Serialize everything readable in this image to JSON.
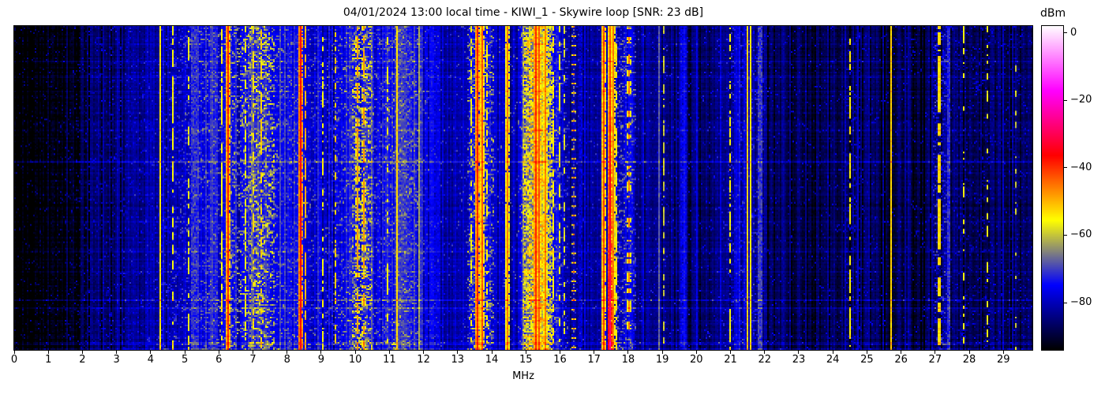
{
  "chart_data": {
    "type": "heatmap",
    "subtype": "radio-spectrogram-waterfall",
    "title": "04/01/2024 13:00 local time - KIWI_1 - Skywire loop [SNR: 23 dB]",
    "datetime_label": "04/01/2024 13:00 local time",
    "receiver": "KIWI_1",
    "antenna": "Skywire loop",
    "snr_label": "SNR: 23 dB",
    "x_axis": {
      "label": "MHz",
      "ticks": [
        0,
        1,
        2,
        3,
        4,
        5,
        6,
        7,
        8,
        9,
        10,
        11,
        12,
        13,
        14,
        15,
        16,
        17,
        18,
        19,
        20,
        21,
        22,
        23,
        24,
        25,
        26,
        27,
        28,
        29
      ]
    },
    "x_range": [
      0,
      29.85
    ],
    "y_axis": {
      "label": "",
      "ticks": [],
      "meaning": "time, no tick labels shown"
    },
    "colorbar": {
      "label": "dBm",
      "ticks": [
        {
          "value": 0,
          "label": "0"
        },
        {
          "value": -20,
          "label": "−20"
        },
        {
          "value": -40,
          "label": "−40"
        },
        {
          "value": -60,
          "label": "−60"
        },
        {
          "value": -80,
          "label": "−80"
        }
      ]
    },
    "colormap": {
      "vmin": -94,
      "vmax": 2,
      "stops": [
        [
          0.0,
          "#000000"
        ],
        [
          0.2,
          "#0000ff"
        ],
        [
          0.4,
          "#ffff00"
        ],
        [
          0.6,
          "#ff0000"
        ],
        [
          0.8,
          "#ff00ff"
        ],
        [
          1.0,
          "#ffffff"
        ]
      ]
    },
    "seed": 42,
    "noise_floor_profile": [
      [
        0,
        -96
      ],
      [
        0.7,
        -95
      ],
      [
        1.3,
        -93.5
      ],
      [
        1.8,
        -91.5
      ],
      [
        2.2,
        -89
      ],
      [
        2.6,
        -86.5
      ],
      [
        3.2,
        -85
      ],
      [
        4.0,
        -83.5
      ],
      [
        4.5,
        -82
      ],
      [
        4.9,
        -80
      ],
      [
        5.2,
        -78
      ],
      [
        5.6,
        -76.5
      ],
      [
        6.1,
        -76.5
      ],
      [
        6.5,
        -75
      ],
      [
        6.9,
        -73.5
      ],
      [
        7.3,
        -73
      ],
      [
        7.6,
        -74.5
      ],
      [
        8.0,
        -77
      ],
      [
        8.4,
        -76
      ],
      [
        8.8,
        -78
      ],
      [
        9.3,
        -78.5
      ],
      [
        9.7,
        -76
      ],
      [
        10.0,
        -73.5
      ],
      [
        10.35,
        -74
      ],
      [
        10.7,
        -77
      ],
      [
        11.0,
        -75
      ],
      [
        11.25,
        -72.5
      ],
      [
        11.6,
        -73.5
      ],
      [
        11.9,
        -76
      ],
      [
        12.2,
        -80
      ],
      [
        12.7,
        -82.5
      ],
      [
        13.1,
        -81
      ],
      [
        13.45,
        -76
      ],
      [
        13.8,
        -76
      ],
      [
        14.1,
        -79
      ],
      [
        14.7,
        -79.5
      ],
      [
        15.0,
        -69
      ],
      [
        15.2,
        -65
      ],
      [
        15.45,
        -65
      ],
      [
        15.7,
        -71
      ],
      [
        15.95,
        -78
      ],
      [
        16.3,
        -82
      ],
      [
        16.8,
        -83.5
      ],
      [
        17.2,
        -83
      ],
      [
        17.7,
        -79
      ],
      [
        18.0,
        -77.5
      ],
      [
        18.2,
        -81
      ],
      [
        18.6,
        -83.5
      ],
      [
        19.2,
        -85
      ],
      [
        20.0,
        -86
      ],
      [
        20.8,
        -84
      ],
      [
        21.2,
        -81.5
      ],
      [
        21.7,
        -81
      ],
      [
        22.1,
        -86.5
      ],
      [
        22.7,
        -88.5
      ],
      [
        23.5,
        -89
      ],
      [
        24.2,
        -88.5
      ],
      [
        24.6,
        -86
      ],
      [
        25.0,
        -87.5
      ],
      [
        25.6,
        -88.5
      ],
      [
        26.5,
        -89
      ],
      [
        27.05,
        -86
      ],
      [
        27.4,
        -87
      ],
      [
        27.9,
        -87
      ],
      [
        28.5,
        -87.5
      ],
      [
        29.3,
        -88
      ],
      [
        29.85,
        -89
      ]
    ],
    "speckle_bands": [
      [
        1.8,
        4.3,
        0.05,
        9
      ],
      [
        4.3,
        5.0,
        0.1,
        13
      ],
      [
        5.0,
        6.2,
        0.12,
        13
      ],
      [
        6.2,
        6.9,
        0.15,
        16
      ],
      [
        6.9,
        7.6,
        0.28,
        19
      ],
      [
        7.6,
        8.3,
        0.1,
        13
      ],
      [
        8.6,
        9.4,
        0.08,
        12
      ],
      [
        9.4,
        9.9,
        0.12,
        14
      ],
      [
        9.9,
        10.45,
        0.3,
        19
      ],
      [
        10.45,
        11.9,
        0.12,
        12
      ],
      [
        11.9,
        12.4,
        0.07,
        10
      ],
      [
        13.3,
        14.0,
        0.22,
        19
      ],
      [
        14.9,
        15.75,
        0.5,
        20
      ],
      [
        15.75,
        16.2,
        0.1,
        14
      ],
      [
        17.65,
        18.2,
        0.18,
        16
      ],
      [
        20.9,
        21.95,
        0.1,
        12
      ],
      [
        24.35,
        24.75,
        0.08,
        12
      ],
      [
        26.95,
        27.3,
        0.22,
        18
      ],
      [
        27.6,
        28.7,
        0.05,
        11
      ],
      [
        29.1,
        29.6,
        0.04,
        10
      ]
    ],
    "carriers": [
      [
        2.57,
        -82,
        1,
        "solid"
      ],
      [
        3.95,
        -83,
        1,
        "solid"
      ],
      [
        4.27,
        -54,
        1,
        "solid"
      ],
      [
        4.64,
        -56,
        1,
        "dashed",
        0.6
      ],
      [
        5.09,
        -57,
        1,
        "dashed",
        0.5
      ],
      [
        6.05,
        -55,
        1,
        "dashed",
        0.6
      ],
      [
        6.27,
        -40,
        1,
        "solid"
      ],
      [
        6.77,
        -56,
        1,
        "dashed",
        0.5
      ],
      [
        7.0,
        -53,
        1,
        "dashed",
        0.5
      ],
      [
        7.21,
        -52,
        1,
        "dashed",
        0.5
      ],
      [
        8.36,
        -37,
        1,
        "solid"
      ],
      [
        8.5,
        -50,
        1,
        "dashed",
        0.7
      ],
      [
        9.02,
        -56,
        1,
        "dashed",
        0.5
      ],
      [
        9.4,
        -52,
        1,
        "dashed",
        0.4
      ],
      [
        10.02,
        -48,
        1,
        "dashed",
        0.75
      ],
      [
        10.25,
        -48,
        1,
        "dashed",
        0.6
      ],
      [
        10.9,
        -56,
        1,
        "dashed",
        0.5
      ],
      [
        11.2,
        -53,
        1,
        "solid"
      ],
      [
        11.85,
        -63,
        1,
        "solid"
      ],
      [
        13.36,
        -56,
        1,
        "dashed",
        0.5
      ],
      [
        13.57,
        -39,
        1,
        "solid"
      ],
      [
        13.7,
        -43,
        1,
        "solid"
      ],
      [
        13.82,
        -55,
        1,
        "dashed",
        0.5
      ],
      [
        14.44,
        -46,
        1,
        "solid"
      ],
      [
        15.25,
        -40,
        1,
        "solid"
      ],
      [
        15.36,
        -43,
        1,
        "solid"
      ],
      [
        15.57,
        -46,
        1,
        "solid"
      ],
      [
        15.78,
        -54,
        1,
        "dashed",
        0.6
      ],
      [
        15.96,
        -56,
        1,
        "dashed",
        0.5
      ],
      [
        16.11,
        -58,
        1,
        "dashed",
        0.4
      ],
      [
        16.4,
        -45,
        1,
        "dotted"
      ],
      [
        17.28,
        -42,
        1,
        "solid"
      ],
      [
        17.45,
        -44,
        1,
        "solid",
        0.5,
        -27
      ],
      [
        17.55,
        -46,
        1,
        "solid"
      ],
      [
        17.64,
        -54,
        1,
        "dashed",
        0.6
      ],
      [
        18.02,
        -46,
        1,
        "dashed",
        0.35
      ],
      [
        18.9,
        -68,
        1,
        "solid"
      ],
      [
        19.02,
        -60,
        1,
        "dashed",
        0.3
      ],
      [
        19.62,
        -74,
        1,
        "solid"
      ],
      [
        20.0,
        -77,
        1,
        "solid"
      ],
      [
        20.97,
        -56,
        1,
        "dashed",
        0.5
      ],
      [
        21.47,
        -52,
        1,
        "solid"
      ],
      [
        21.56,
        -54,
        1,
        "solid"
      ],
      [
        22.55,
        -83,
        1,
        "solid"
      ],
      [
        23.2,
        -84,
        1,
        "solid"
      ],
      [
        24.47,
        -55,
        1,
        "dashed",
        0.6
      ],
      [
        24.72,
        -79,
        1,
        "solid"
      ],
      [
        25.7,
        -52,
        1,
        "solid"
      ],
      [
        26.1,
        -83,
        1,
        "solid"
      ],
      [
        27.08,
        -53,
        2,
        "dashed",
        0.7
      ],
      [
        27.82,
        -56,
        1,
        "dashed",
        0.4
      ],
      [
        28.52,
        -57,
        1,
        "dashed",
        0.35
      ],
      [
        28.95,
        -80,
        1,
        "solid"
      ],
      [
        29.32,
        -60,
        1,
        "dashed",
        0.2
      ]
    ],
    "utility_columns": [
      [
        5.18,
        5.36,
        -71
      ],
      [
        11.22,
        11.44,
        -70
      ],
      [
        11.5,
        11.62,
        -72
      ],
      [
        12.32,
        12.44,
        -77
      ],
      [
        16.55,
        16.63,
        -78
      ],
      [
        19.55,
        19.66,
        -76
      ],
      [
        21.78,
        21.9,
        -70
      ],
      [
        27.33,
        27.42,
        -71
      ]
    ],
    "time_events": [
      [
        0.055,
        3,
        1
      ],
      [
        0.105,
        3,
        1
      ],
      [
        0.155,
        2,
        1
      ],
      [
        0.2,
        3,
        1
      ],
      [
        0.265,
        2,
        1
      ],
      [
        0.321,
        4,
        1
      ],
      [
        0.355,
        2,
        1
      ],
      [
        0.416,
        7,
        1
      ],
      [
        0.44,
        3,
        1
      ],
      [
        0.52,
        2,
        1
      ],
      [
        0.6,
        2,
        1
      ],
      [
        0.695,
        4,
        1
      ],
      [
        0.755,
        2,
        1
      ],
      [
        0.845,
        7,
        1
      ],
      [
        0.87,
        5,
        1
      ],
      [
        0.91,
        2,
        1
      ],
      [
        0.955,
        2,
        1
      ],
      [
        0.975,
        4,
        2
      ],
      [
        0.995,
        4,
        2
      ]
    ]
  }
}
